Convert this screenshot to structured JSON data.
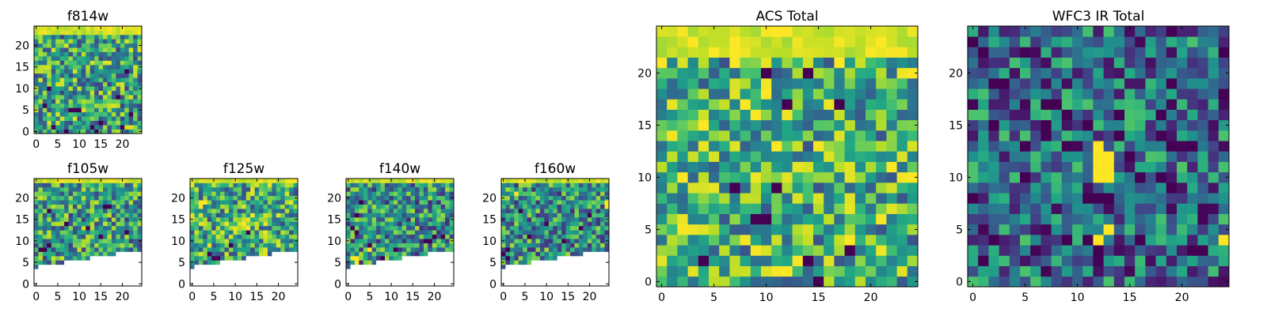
{
  "figure": {
    "background": "#ffffff",
    "colormap": "viridis",
    "missing_color": "#ffffff"
  },
  "chart_data": [
    {
      "type": "heatmap",
      "title": "f814w",
      "xlabel": "",
      "ylabel": "",
      "grid_size": [
        25,
        25
      ],
      "xlim": [
        -0.5,
        24.5
      ],
      "ylim": [
        -0.5,
        24.5
      ],
      "xticks": [
        0,
        5,
        10,
        15,
        20
      ],
      "yticks": [
        0,
        5,
        10,
        15,
        20
      ],
      "top_band_rows": 2,
      "cutoff_left": null,
      "cutoff_right": null,
      "dark_cells": [
        [
          2,
          6
        ],
        [
          4,
          1
        ],
        [
          7,
          0
        ],
        [
          8,
          5
        ],
        [
          9,
          5
        ],
        [
          10,
          5
        ],
        [
          13,
          1
        ],
        [
          14,
          0
        ],
        [
          15,
          2
        ],
        [
          20,
          1
        ],
        [
          22,
          4
        ],
        [
          19,
          8
        ],
        [
          21,
          14
        ],
        [
          3,
          10
        ]
      ],
      "bright_cells": [],
      "bright_bias": 0.15
    },
    {
      "type": "heatmap",
      "title": "f105w",
      "xlabel": "",
      "ylabel": "",
      "grid_size": [
        25,
        25
      ],
      "xlim": [
        -0.5,
        24.5
      ],
      "ylim": [
        -0.5,
        24.5
      ],
      "xticks": [
        0,
        5,
        10,
        15,
        20
      ],
      "yticks": [
        0,
        5,
        10,
        15,
        20
      ],
      "top_band_rows": 1,
      "cutoff_left": 4.5,
      "cutoff_right": 8.5,
      "dark_cells": [
        [
          1,
          8
        ],
        [
          2,
          8
        ],
        [
          3,
          9
        ],
        [
          16,
          18
        ],
        [
          17,
          18
        ],
        [
          15,
          11
        ],
        [
          12,
          13
        ],
        [
          7,
          14
        ],
        [
          3,
          17
        ],
        [
          21,
          12
        ]
      ],
      "bright_cells": [],
      "bright_bias": 0.1
    },
    {
      "type": "heatmap",
      "title": "f125w",
      "xlabel": "",
      "ylabel": "",
      "grid_size": [
        25,
        25
      ],
      "xlim": [
        -0.5,
        24.5
      ],
      "ylim": [
        -0.5,
        24.5
      ],
      "xticks": [
        0,
        5,
        10,
        15,
        20
      ],
      "yticks": [
        0,
        5,
        10,
        15,
        20
      ],
      "top_band_rows": 1,
      "cutoff_left": 4.5,
      "cutoff_right": 8.5,
      "dark_cells": [
        [
          5,
          6
        ],
        [
          6,
          6
        ],
        [
          4,
          7
        ],
        [
          9,
          9
        ],
        [
          13,
          12
        ]
      ],
      "bright_cells": [
        [
          2,
          19
        ],
        [
          3,
          19
        ],
        [
          2,
          18
        ],
        [
          12,
          14
        ],
        [
          14,
          16
        ],
        [
          13,
          13
        ]
      ],
      "bright_bias": 0.2
    },
    {
      "type": "heatmap",
      "title": "f140w",
      "xlabel": "",
      "ylabel": "",
      "grid_size": [
        25,
        25
      ],
      "xlim": [
        -0.5,
        24.5
      ],
      "ylim": [
        -0.5,
        24.5
      ],
      "xticks": [
        0,
        5,
        10,
        15,
        20
      ],
      "yticks": [
        0,
        5,
        10,
        15,
        20
      ],
      "top_band_rows": 1,
      "cutoff_left": 4.5,
      "cutoff_right": 8.5,
      "dark_cells": [
        [
          3,
          19
        ],
        [
          2,
          16
        ],
        [
          1,
          13
        ],
        [
          20,
          11
        ],
        [
          18,
          10
        ],
        [
          19,
          10
        ],
        [
          22,
          11
        ],
        [
          8,
          6
        ],
        [
          11,
          8
        ],
        [
          5,
          9
        ],
        [
          2,
          12
        ]
      ],
      "bright_cells": [
        [
          1,
          6
        ],
        [
          2,
          6
        ],
        [
          2,
          5
        ],
        [
          5,
          8
        ]
      ],
      "bright_bias": 0.0
    },
    {
      "type": "heatmap",
      "title": "f160w",
      "xlabel": "",
      "ylabel": "",
      "grid_size": [
        25,
        25
      ],
      "xlim": [
        -0.5,
        24.5
      ],
      "ylim": [
        -0.5,
        24.5
      ],
      "xticks": [
        0,
        5,
        10,
        15,
        20
      ],
      "yticks": [
        0,
        5,
        10,
        15,
        20
      ],
      "top_band_rows": 1,
      "cutoff_left": 4.5,
      "cutoff_right": 8.5,
      "dark_cells": [
        [
          0,
          7
        ],
        [
          1,
          6
        ],
        [
          1,
          8
        ],
        [
          14,
          10
        ],
        [
          18,
          13
        ],
        [
          20,
          16
        ],
        [
          6,
          11
        ],
        [
          10,
          14
        ],
        [
          4,
          17
        ]
      ],
      "bright_cells": [
        [
          24,
          18
        ],
        [
          24,
          19
        ],
        [
          3,
          21
        ]
      ],
      "bright_bias": 0.0
    },
    {
      "type": "heatmap",
      "title": "ACS Total",
      "xlabel": "",
      "ylabel": "",
      "grid_size": [
        25,
        25
      ],
      "xlim": [
        -0.5,
        24.5
      ],
      "ylim": [
        -0.5,
        24.5
      ],
      "xticks": [
        0,
        5,
        10,
        15,
        20
      ],
      "yticks": [
        0,
        5,
        10,
        15,
        20
      ],
      "top_band_rows": 3,
      "cutoff_left": null,
      "cutoff_right": null,
      "dark_cells": [
        [
          7,
          9
        ],
        [
          11,
          9
        ],
        [
          9,
          6
        ],
        [
          10,
          6
        ],
        [
          4,
          2
        ],
        [
          14,
          2
        ],
        [
          15,
          0
        ],
        [
          18,
          3
        ],
        [
          17,
          17
        ],
        [
          12,
          17
        ],
        [
          10,
          20
        ],
        [
          14,
          20
        ]
      ],
      "bright_cells": [
        [
          18,
          4
        ],
        [
          4,
          15
        ],
        [
          11,
          13
        ],
        [
          24,
          10
        ],
        [
          7,
          23
        ],
        [
          11,
          24
        ],
        [
          12,
          24
        ]
      ],
      "bright_bias": 0.25
    },
    {
      "type": "heatmap",
      "title": "WFC3 IR Total",
      "xlabel": "",
      "ylabel": "",
      "grid_size": [
        25,
        25
      ],
      "xlim": [
        -0.5,
        24.5
      ],
      "ylim": [
        -0.5,
        24.5
      ],
      "xticks": [
        0,
        5,
        10,
        15,
        20
      ],
      "yticks": [
        0,
        5,
        10,
        15,
        20
      ],
      "top_band_rows": 0,
      "cutoff_left": null,
      "cutoff_right": null,
      "dark_cells": [
        [
          7,
          15
        ],
        [
          7,
          14
        ],
        [
          12,
          8
        ],
        [
          13,
          8
        ],
        [
          11,
          8
        ],
        [
          14,
          14
        ],
        [
          0,
          8
        ],
        [
          1,
          2
        ],
        [
          5,
          10
        ],
        [
          9,
          16
        ],
        [
          2,
          19
        ],
        [
          21,
          3
        ],
        [
          22,
          3
        ],
        [
          18,
          10
        ],
        [
          24,
          18
        ]
      ],
      "bright_cells": [
        [
          12,
          13
        ],
        [
          12,
          12
        ],
        [
          12,
          11
        ],
        [
          12,
          10
        ],
        [
          13,
          12
        ],
        [
          13,
          11
        ],
        [
          13,
          10
        ],
        [
          13,
          5
        ],
        [
          12,
          4
        ],
        [
          24,
          4
        ]
      ],
      "bright_bias": -0.3
    }
  ]
}
